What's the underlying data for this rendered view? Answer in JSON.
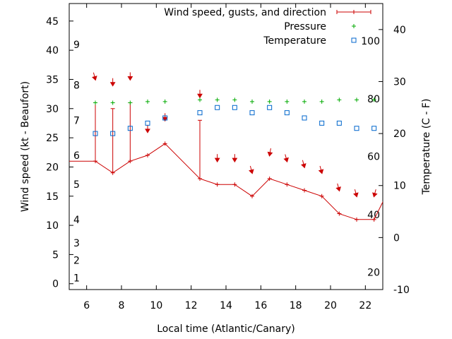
{
  "chart_data": {
    "type": "line",
    "xlabel": "Local time (Atlantic/Canary)",
    "ylabel_left": "Wind speed (kt - Beaufort)",
    "ylabel_right": "Temperature (C - F)",
    "xlim": [
      5,
      23
    ],
    "ylim_left": [
      -1,
      48
    ],
    "ylim_right": [
      -10,
      45
    ],
    "x_ticks": [
      6,
      8,
      10,
      12,
      14,
      16,
      18,
      20,
      22
    ],
    "y_left_ticks": [
      0,
      5,
      10,
      15,
      20,
      25,
      30,
      35,
      40,
      45
    ],
    "y_right_ticks": [
      -10,
      0,
      10,
      20,
      30,
      40
    ],
    "beaufort_scale": [
      {
        "label": "1",
        "kt": 1
      },
      {
        "label": "2",
        "kt": 4
      },
      {
        "label": "3",
        "kt": 7
      },
      {
        "label": "4",
        "kt": 11
      },
      {
        "label": "5",
        "kt": 17
      },
      {
        "label": "6",
        "kt": 22
      },
      {
        "label": "7",
        "kt": 28
      },
      {
        "label": "8",
        "kt": 34
      },
      {
        "label": "9",
        "kt": 41
      }
    ],
    "fahrenheit_scale": [
      {
        "label": "20",
        "temp_c": -6.7
      },
      {
        "label": "40",
        "temp_c": 4.4
      },
      {
        "label": "60",
        "temp_c": 15.6
      },
      {
        "label": "80",
        "temp_c": 26.7
      },
      {
        "label": "100",
        "temp_c": 37.8
      }
    ],
    "legend": {
      "placement": "top-right",
      "entries": [
        "Wind speed, gusts, and direction",
        "Pressure",
        "Temperature"
      ]
    },
    "colors": {
      "wind": "#cc0000",
      "pressure": "#00aa00",
      "temperature": "#0066cc"
    },
    "series": [
      {
        "name": "Wind speed, gusts, and direction",
        "x": [
          4.5,
          6.5,
          7.5,
          8.5,
          9.5,
          10.5,
          12.5,
          13.5,
          14.5,
          15.5,
          16.5,
          17.5,
          18.5,
          19.5,
          20.5,
          21.5,
          22.5,
          23.5
        ],
        "speed": [
          21,
          21,
          19,
          21,
          22,
          24,
          18,
          17,
          17,
          15,
          18,
          17,
          16,
          15,
          12,
          11,
          11,
          17
        ],
        "gust": [
          null,
          31,
          30,
          31,
          null,
          null,
          28,
          null,
          null,
          null,
          null,
          null,
          null,
          null,
          null,
          null,
          null,
          null
        ]
      },
      {
        "name": "Wind direction arrows",
        "x": [
          6.5,
          7.5,
          8.5,
          9.5,
          10.5,
          12.5,
          13.5,
          14.5,
          15.5,
          16.5,
          17.5,
          18.5,
          19.5,
          20.5,
          21.5,
          22.5
        ],
        "y": [
          35,
          34,
          35,
          26,
          28,
          32,
          21,
          21,
          19,
          22,
          21,
          20,
          19,
          16,
          15,
          15
        ],
        "rotation_deg": [
          -15,
          0,
          0,
          0,
          0,
          0,
          0,
          0,
          -15,
          10,
          -15,
          -15,
          -15,
          -15,
          -15,
          15
        ]
      },
      {
        "name": "Pressure",
        "x": [
          6.5,
          7.5,
          8.5,
          9.5,
          10.5,
          12.5,
          13.5,
          14.5,
          15.5,
          16.5,
          17.5,
          18.5,
          19.5,
          20.5,
          21.5,
          22.5
        ],
        "y": [
          31,
          31,
          31,
          31.2,
          31.2,
          31.5,
          31.5,
          31.5,
          31.2,
          31.2,
          31.2,
          31.2,
          31.2,
          31.5,
          31.5,
          31.5
        ]
      },
      {
        "name": "Temperature",
        "x": [
          6.5,
          7.5,
          8.5,
          9.5,
          10.5,
          12.5,
          13.5,
          14.5,
          15.5,
          16.5,
          17.5,
          18.5,
          19.5,
          20.5,
          21.5,
          22.5
        ],
        "temp_c": [
          20,
          20,
          21,
          22,
          23,
          24,
          25,
          25,
          24,
          25,
          24,
          23,
          22,
          22,
          21,
          21
        ]
      }
    ]
  }
}
